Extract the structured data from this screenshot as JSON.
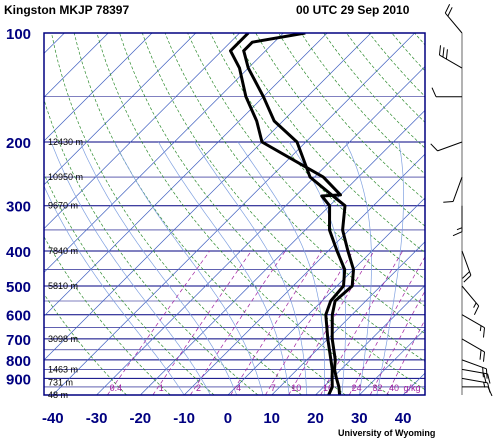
{
  "station_title": "Kingston MKJP 78397",
  "time_title": "00 UTC 29 Sep 2010",
  "credit": "University of Wyoming",
  "colors": {
    "frame": "#000080",
    "isobar": "#000080",
    "isotherm": "#4060c0",
    "dry_adiabat": "#2e8b2e",
    "moist_adiabat": "#7fa0e0",
    "mixing_ratio": "#a020a0",
    "profile": "#000000",
    "axis_text": "#000080"
  },
  "chart_data": {
    "type": "line",
    "title": "Kingston MKJP 78397",
    "subtitle": "00 UTC 29 Sep 2010",
    "xlabel": "",
    "ylabel": "",
    "x_ticks": [
      -40,
      -30,
      -20,
      -10,
      0,
      10,
      20,
      30,
      40
    ],
    "y_ticks": [
      100,
      200,
      300,
      400,
      500,
      600,
      700,
      800,
      900
    ],
    "xlim": [
      -40,
      40
    ],
    "ylim": [
      1000,
      100
    ],
    "y_scale": "log",
    "height_labels": [
      {
        "p": 200,
        "text": "12430 m"
      },
      {
        "p": 250,
        "text": "10950 m"
      },
      {
        "p": 300,
        "text": "9670 m"
      },
      {
        "p": 400,
        "text": "7840 m"
      },
      {
        "p": 500,
        "text": "5810 m"
      },
      {
        "p": 700,
        "text": "3098 m"
      },
      {
        "p": 850,
        "text": "1463 m"
      },
      {
        "p": 925,
        "text": "731 m"
      },
      {
        "p": 1000,
        "text": "48 m"
      }
    ],
    "mixing_ratio_labels": [
      "0.4",
      "1",
      "2",
      "4",
      "7",
      "10",
      "16",
      "24",
      "32",
      "40",
      "g/kg"
    ],
    "series": [
      {
        "key": "temperature",
        "points": [
          [
            1000,
            25.5
          ],
          [
            950,
            23.5
          ],
          [
            900,
            21.0
          ],
          [
            850,
            18.5
          ],
          [
            800,
            16.5
          ],
          [
            700,
            11.0
          ],
          [
            600,
            5.5
          ],
          [
            550,
            3.0
          ],
          [
            500,
            3.5
          ],
          [
            450,
            0.0
          ],
          [
            400,
            -5.5
          ],
          [
            350,
            -11.5
          ],
          [
            300,
            -16.5
          ],
          [
            280,
            -22.0
          ],
          [
            250,
            -31.0
          ],
          [
            200,
            -42.0
          ],
          [
            175,
            -52.0
          ],
          [
            150,
            -60.0
          ],
          [
            125,
            -70.0
          ],
          [
            112,
            -75.0
          ],
          [
            106,
            -75.0
          ],
          [
            100,
            -65.0
          ]
        ]
      },
      {
        "key": "dewpoint",
        "points": [
          [
            1000,
            23.0
          ],
          [
            950,
            22.0
          ],
          [
            900,
            20.0
          ],
          [
            850,
            18.0
          ],
          [
            800,
            15.5
          ],
          [
            700,
            10.0
          ],
          [
            600,
            4.0
          ],
          [
            550,
            2.0
          ],
          [
            500,
            1.5
          ],
          [
            450,
            -2.0
          ],
          [
            400,
            -8.0
          ],
          [
            350,
            -14.5
          ],
          [
            300,
            -20.0
          ],
          [
            282,
            -24.0
          ],
          [
            280,
            -20.0
          ],
          [
            250,
            -28.0
          ],
          [
            200,
            -50.0
          ],
          [
            175,
            -56.0
          ],
          [
            150,
            -64.0
          ],
          [
            125,
            -72.0
          ],
          [
            112,
            -78.0
          ],
          [
            100,
            -78.0
          ]
        ]
      }
    ],
    "wind_barbs": [
      {
        "p": 950,
        "dir": 90,
        "spd": 10
      },
      {
        "p": 900,
        "dir": 100,
        "spd": 15
      },
      {
        "p": 850,
        "dir": 100,
        "spd": 20
      },
      {
        "p": 800,
        "dir": 110,
        "spd": 20
      },
      {
        "p": 700,
        "dir": 120,
        "spd": 20
      },
      {
        "p": 600,
        "dir": 120,
        "spd": 15
      },
      {
        "p": 500,
        "dir": 140,
        "spd": 15
      },
      {
        "p": 400,
        "dir": 160,
        "spd": 20
      },
      {
        "p": 300,
        "dir": 180,
        "spd": 15
      },
      {
        "p": 250,
        "dir": 200,
        "spd": 10
      },
      {
        "p": 200,
        "dir": 250,
        "spd": 10
      },
      {
        "p": 150,
        "dir": 270,
        "spd": 10
      },
      {
        "p": 125,
        "dir": 300,
        "spd": 30
      },
      {
        "p": 100,
        "dir": 320,
        "spd": 20
      }
    ]
  }
}
